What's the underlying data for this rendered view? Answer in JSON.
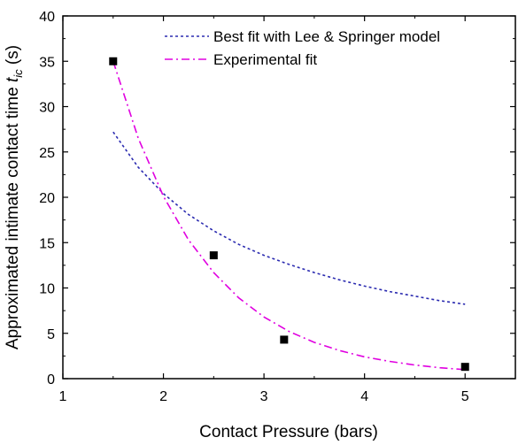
{
  "chart_data": {
    "type": "scatter",
    "xlabel": "Contact Pressure (bars)",
    "ylabel": {
      "prefix": "Approximated intimate contact time ",
      "symbol": "t",
      "subscript": "ic",
      "suffix": " (s)"
    },
    "xlim": [
      1,
      5.5
    ],
    "ylim": [
      0,
      40
    ],
    "x_ticks": [
      "1",
      "2",
      "3",
      "4",
      "5"
    ],
    "y_ticks": [
      "0",
      "5",
      "10",
      "15",
      "20",
      "25",
      "30",
      "35",
      "40"
    ],
    "grid": false,
    "legend_position": "top-right",
    "points": {
      "x": [
        1.5,
        2.5,
        3.2,
        5.0
      ],
      "y": [
        35.0,
        13.6,
        4.3,
        1.3
      ],
      "color": "#000000",
      "marker": "square"
    },
    "series": [
      {
        "name": "Best fit with Lee & Springer model",
        "color": "#2b2bb0",
        "style": "dotted",
        "x": [
          1.5,
          1.75,
          2.0,
          2.25,
          2.5,
          2.75,
          3.0,
          3.25,
          3.5,
          3.75,
          4.0,
          4.25,
          4.5,
          4.75,
          5.0
        ],
        "y": [
          27.2,
          23.3,
          20.4,
          18.1,
          16.3,
          14.8,
          13.6,
          12.6,
          11.7,
          10.9,
          10.2,
          9.6,
          9.1,
          8.6,
          8.2
        ]
      },
      {
        "name": "Experimental fit",
        "color": "#e000e0",
        "style": "dashdot",
        "x": [
          1.5,
          1.75,
          2.0,
          2.25,
          2.5,
          2.75,
          3.0,
          3.25,
          3.5,
          3.75,
          4.0,
          4.25,
          4.5,
          4.75,
          5.0
        ],
        "y": [
          35.0,
          26.5,
          20.1,
          15.3,
          11.7,
          8.9,
          6.8,
          5.2,
          4.0,
          3.1,
          2.4,
          1.9,
          1.5,
          1.2,
          1.0
        ]
      }
    ]
  }
}
